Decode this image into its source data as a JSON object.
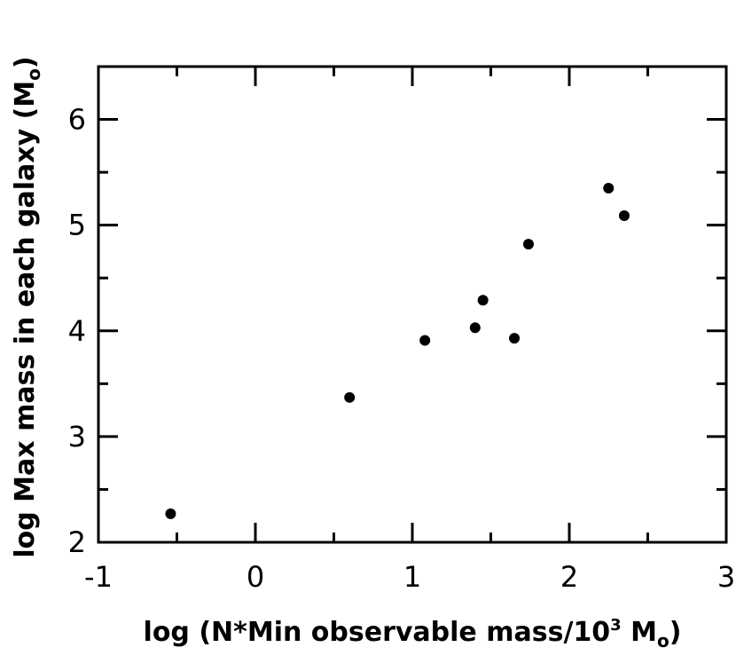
{
  "chart_data": {
    "type": "scatter",
    "title": "",
    "xlabel": {
      "prefix": "log (N*Min observable mass/10",
      "sup": "3",
      "mid": " M",
      "sub": "o",
      "suffix": ")"
    },
    "ylabel": {
      "prefix": "log Max mass in each galaxy (M",
      "sub": "o",
      "suffix": ")"
    },
    "xlim": [
      -1,
      3
    ],
    "ylim": [
      2,
      6.5
    ],
    "x_ticks": [
      -1,
      0,
      1,
      2,
      3
    ],
    "x_tick_labels": [
      "-1",
      "0",
      "1",
      "2",
      "3"
    ],
    "y_ticks": [
      2,
      3,
      4,
      5,
      6
    ],
    "y_tick_labels": [
      "2",
      "3",
      "4",
      "5",
      "6"
    ],
    "grid": false,
    "marker_color": "#000000",
    "points": [
      {
        "x": -0.54,
        "y": 2.27
      },
      {
        "x": 0.6,
        "y": 3.37
      },
      {
        "x": 1.08,
        "y": 3.91
      },
      {
        "x": 1.4,
        "y": 4.03
      },
      {
        "x": 1.45,
        "y": 4.29
      },
      {
        "x": 1.65,
        "y": 3.93
      },
      {
        "x": 1.74,
        "y": 4.82
      },
      {
        "x": 2.25,
        "y": 5.35
      },
      {
        "x": 2.35,
        "y": 5.09
      }
    ]
  }
}
